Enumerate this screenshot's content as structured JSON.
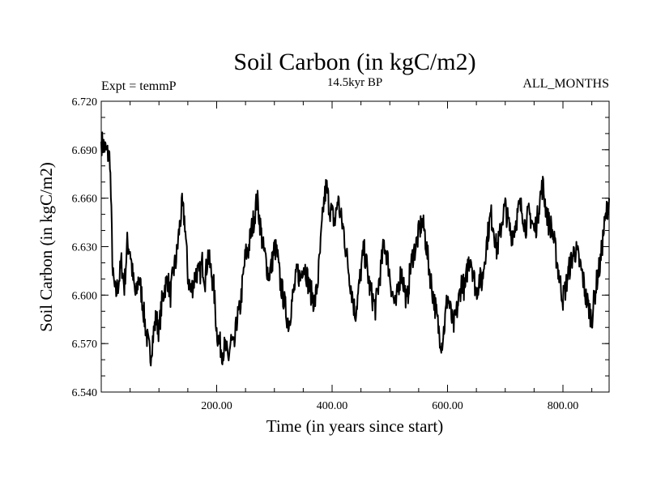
{
  "chart_data": {
    "type": "line",
    "title": "Soil Carbon (in kgC/m2)",
    "subtitle": "14.5kyr BP",
    "left_annotation": "Expt = temmP",
    "right_annotation": "ALL_MONTHS",
    "xlabel": "Time (in years since start)",
    "ylabel": "Soil Carbon (in kgC/m2)",
    "xlim": [
      0,
      880
    ],
    "ylim": [
      6.54,
      6.72
    ],
    "x_ticks": [
      200,
      400,
      600,
      800
    ],
    "x_tick_labels": [
      "200.00",
      "400.00",
      "600.00",
      "800.00"
    ],
    "y_ticks": [
      6.54,
      6.57,
      6.6,
      6.63,
      6.66,
      6.69,
      6.72
    ],
    "y_tick_labels": [
      "6.540",
      "6.570",
      "6.600",
      "6.630",
      "6.660",
      "6.690",
      "6.720"
    ],
    "grid": false,
    "series": [
      {
        "name": "Soil Carbon",
        "color": "#000000",
        "x": [
          0,
          5,
          10,
          15,
          20,
          25,
          30,
          35,
          40,
          45,
          50,
          55,
          60,
          65,
          70,
          75,
          80,
          85,
          90,
          95,
          100,
          105,
          110,
          115,
          120,
          125,
          130,
          135,
          140,
          145,
          150,
          155,
          160,
          165,
          170,
          175,
          180,
          185,
          190,
          195,
          200,
          205,
          210,
          215,
          220,
          225,
          230,
          235,
          240,
          245,
          250,
          255,
          260,
          265,
          270,
          275,
          280,
          285,
          290,
          295,
          300,
          305,
          310,
          315,
          320,
          325,
          330,
          335,
          340,
          345,
          350,
          355,
          360,
          365,
          370,
          375,
          380,
          385,
          390,
          395,
          400,
          405,
          410,
          415,
          420,
          425,
          430,
          435,
          440,
          445,
          450,
          455,
          460,
          465,
          470,
          475,
          480,
          485,
          490,
          495,
          500,
          505,
          510,
          515,
          520,
          525,
          530,
          535,
          540,
          545,
          550,
          555,
          560,
          565,
          570,
          575,
          580,
          585,
          590,
          595,
          600,
          605,
          610,
          615,
          620,
          625,
          630,
          635,
          640,
          645,
          650,
          655,
          660,
          665,
          670,
          675,
          680,
          685,
          690,
          695,
          700,
          705,
          710,
          715,
          720,
          725,
          730,
          735,
          740,
          745,
          750,
          755,
          760,
          765,
          770,
          775,
          780,
          785,
          790,
          795,
          800,
          805,
          810,
          815,
          820,
          825,
          830,
          835,
          840,
          845,
          850,
          855,
          860,
          865,
          870,
          875,
          880
        ],
        "values": [
          6.695,
          6.692,
          6.688,
          6.685,
          6.612,
          6.6,
          6.608,
          6.62,
          6.605,
          6.632,
          6.628,
          6.61,
          6.598,
          6.612,
          6.6,
          6.585,
          6.572,
          6.562,
          6.575,
          6.586,
          6.578,
          6.595,
          6.605,
          6.61,
          6.6,
          6.615,
          6.622,
          6.64,
          6.655,
          6.645,
          6.612,
          6.602,
          6.608,
          6.615,
          6.612,
          6.62,
          6.61,
          6.625,
          6.615,
          6.605,
          6.578,
          6.57,
          6.565,
          6.568,
          6.56,
          6.572,
          6.566,
          6.585,
          6.59,
          6.608,
          6.625,
          6.628,
          6.64,
          6.648,
          6.66,
          6.645,
          6.63,
          6.622,
          6.612,
          6.618,
          6.63,
          6.625,
          6.608,
          6.6,
          6.59,
          6.582,
          6.595,
          6.605,
          6.615,
          6.61,
          6.62,
          6.615,
          6.605,
          6.6,
          6.595,
          6.608,
          6.63,
          6.655,
          6.668,
          6.655,
          6.65,
          6.645,
          6.66,
          6.648,
          6.64,
          6.625,
          6.612,
          6.6,
          6.588,
          6.6,
          6.615,
          6.628,
          6.618,
          6.605,
          6.598,
          6.592,
          6.605,
          6.618,
          6.632,
          6.625,
          6.612,
          6.6,
          6.592,
          6.606,
          6.615,
          6.605,
          6.595,
          6.615,
          6.625,
          6.63,
          6.638,
          6.645,
          6.64,
          6.625,
          6.612,
          6.6,
          6.59,
          6.578,
          6.57,
          6.582,
          6.6,
          6.59,
          6.58,
          6.588,
          6.598,
          6.61,
          6.602,
          6.618,
          6.625,
          6.612,
          6.602,
          6.61,
          6.608,
          6.625,
          6.638,
          6.65,
          6.642,
          6.628,
          6.635,
          6.648,
          6.655,
          6.645,
          6.638,
          6.64,
          6.648,
          6.655,
          6.652,
          6.642,
          6.65,
          6.648,
          6.64,
          6.645,
          6.66,
          6.668,
          6.655,
          6.645,
          6.642,
          6.632,
          6.62,
          6.608,
          6.598,
          6.605,
          6.615,
          6.622,
          6.628,
          6.625,
          6.618,
          6.61,
          6.598,
          6.592,
          6.585,
          6.6,
          6.612,
          6.62,
          6.638,
          6.65,
          6.66
        ]
      }
    ]
  }
}
